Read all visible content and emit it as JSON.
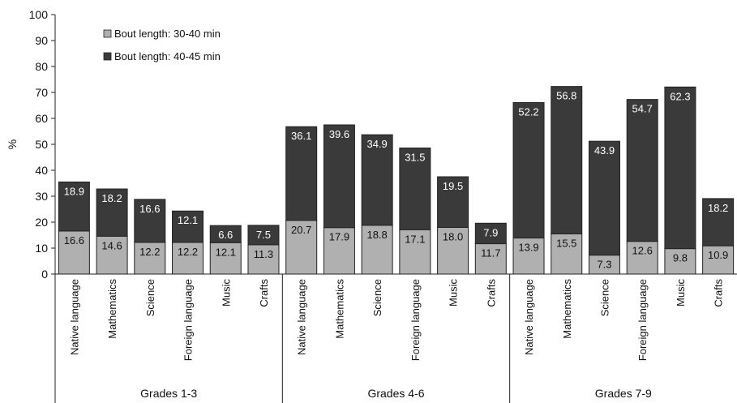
{
  "chart_data": {
    "type": "bar",
    "stacked": true,
    "ylabel": "%",
    "ylim": [
      0,
      100
    ],
    "yticks": [
      0,
      10,
      20,
      30,
      40,
      50,
      60,
      70,
      80,
      90,
      100
    ],
    "grid": false,
    "legend_position": "top-left",
    "groups": [
      {
        "label": "Grades 1-3",
        "categories": [
          "Native language",
          "Mathematics",
          "Science",
          "Foreign language",
          "Music",
          "Crafts"
        ]
      },
      {
        "label": "Grades 4-6",
        "categories": [
          "Native language",
          "Mathematics",
          "Science",
          "Foreign language",
          "Music",
          "Crafts"
        ]
      },
      {
        "label": "Grades 7-9",
        "categories": [
          "Native language",
          "Mathematics",
          "Science",
          "Foreign language",
          "Music",
          "Crafts"
        ]
      }
    ],
    "series": [
      {
        "name": "Bout length: 30-40 min",
        "color": "#b0b0b0",
        "values": [
          16.6,
          14.6,
          12.2,
          12.2,
          12.1,
          11.3,
          20.7,
          17.9,
          18.8,
          17.1,
          18.0,
          11.7,
          13.9,
          15.5,
          7.3,
          12.6,
          9.8,
          10.9
        ]
      },
      {
        "name": "Bout length: 40-45 min",
        "color": "#3a3a3a",
        "values": [
          18.9,
          18.2,
          16.6,
          12.1,
          6.6,
          7.5,
          36.1,
          39.6,
          34.9,
          31.5,
          19.5,
          7.9,
          52.2,
          56.8,
          43.9,
          54.7,
          62.3,
          18.2
        ]
      }
    ]
  }
}
